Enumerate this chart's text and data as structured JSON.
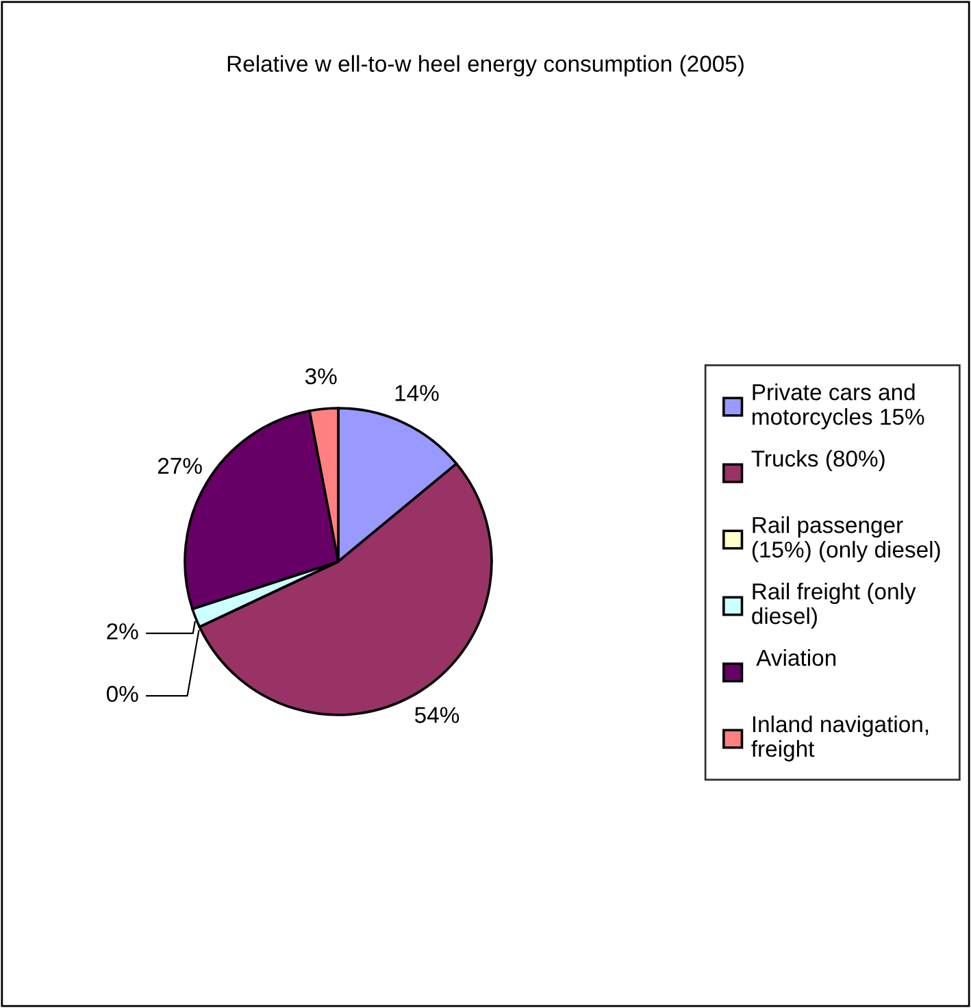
{
  "chart_data": {
    "type": "pie",
    "title": "Relative w ell-to-w heel energy consumption (2005)",
    "categories": [
      "Private cars and\nmotorcycles 15%",
      "Trucks (80%)\n",
      "Rail passenger\n(15%) (only diesel)",
      "Rail freight (only\ndiesel)",
      " Aviation\n",
      "Inland navigation,\nfreight"
    ],
    "values": [
      14,
      54,
      0,
      2,
      27,
      3
    ],
    "colors": [
      "#9999ff",
      "#993366",
      "#ffffcc",
      "#ccffff",
      "#660066",
      "#ff8080"
    ],
    "value_labels": [
      "14%",
      "54%",
      "0%",
      "2%",
      "27%",
      "3%"
    ],
    "legend": "right"
  }
}
